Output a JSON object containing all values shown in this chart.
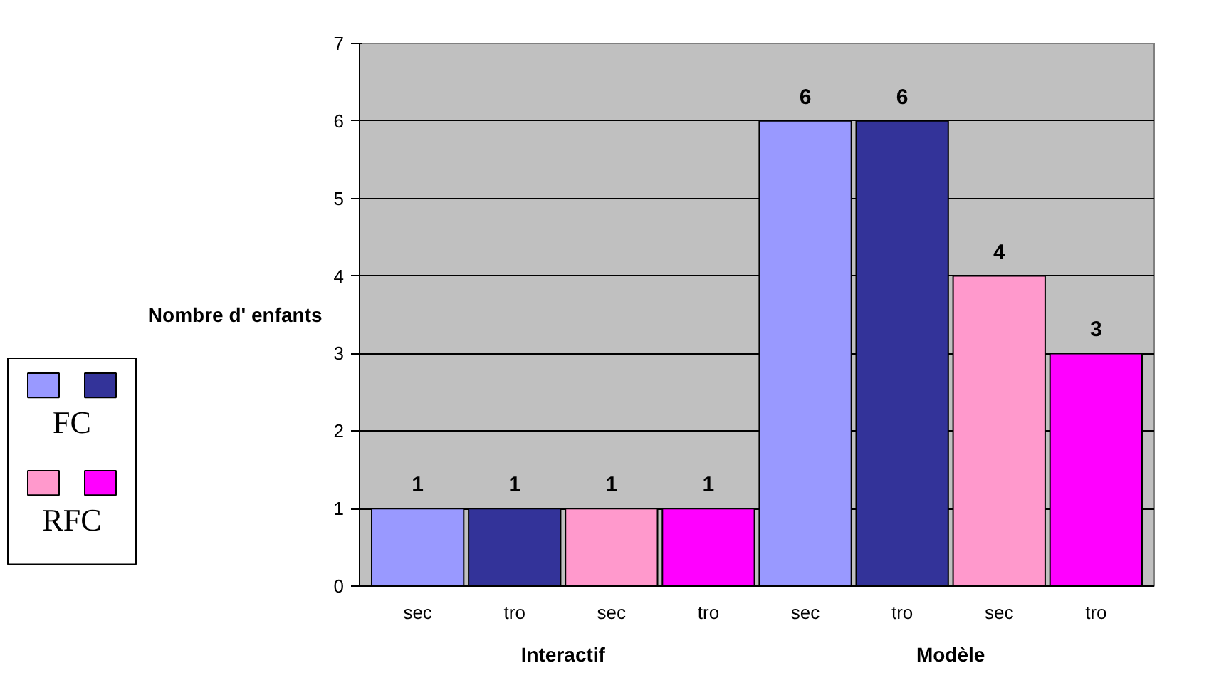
{
  "chart_data": {
    "type": "bar",
    "ylabel": "Nombre d' enfants",
    "categories": [
      "sec",
      "tro",
      "sec",
      "tro",
      "sec",
      "tro",
      "sec",
      "tro"
    ],
    "series": [
      {
        "name": "FC",
        "colors": [
          "#9999ff",
          "#333399",
          null,
          null,
          "#9999ff",
          "#333399",
          null,
          null
        ],
        "values": [
          1,
          1,
          null,
          null,
          6,
          6,
          null,
          null
        ]
      },
      {
        "name": "RFC",
        "colors": [
          null,
          null,
          "#ff99cc",
          "#ff00ff",
          null,
          null,
          "#ff99cc",
          "#ff00ff"
        ],
        "values": [
          null,
          null,
          1,
          1,
          null,
          null,
          4,
          3
        ]
      }
    ],
    "annotations": [
      "Interactif",
      "Modèle"
    ],
    "ylim": [
      0,
      7
    ],
    "yticks": [
      0,
      1,
      2,
      3,
      4,
      5,
      6,
      7
    ],
    "grid": "y",
    "data_labels": true,
    "legend": "left"
  }
}
